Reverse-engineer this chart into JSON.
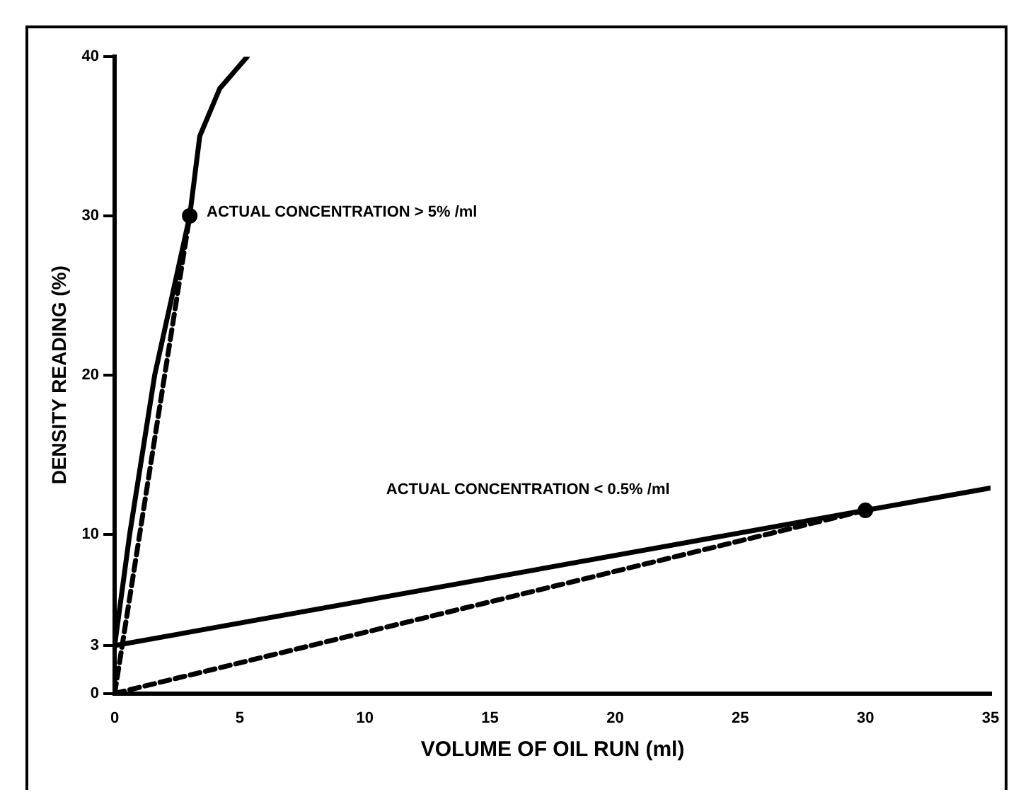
{
  "chart_data": {
    "type": "line",
    "xlabel": "VOLUME OF OIL RUN (ml)",
    "ylabel": "DENSITY READING (%)",
    "xlim": [
      0,
      35
    ],
    "xticks": [
      0,
      5,
      10,
      15,
      20,
      25,
      30,
      35
    ],
    "ylim": [
      0,
      40
    ],
    "yticks": [
      0,
      3,
      10,
      20,
      30,
      40
    ],
    "grid": false,
    "legend": false,
    "marker": "none",
    "series": [
      {
        "type": "line",
        "color": "#000000",
        "line_style": "solid",
        "x": [
          0,
          0.6,
          1.6,
          3,
          3.4,
          4.2,
          5.3
        ],
        "values": [
          3,
          10,
          20,
          30,
          35,
          38,
          40
        ]
      },
      {
        "type": "line",
        "color": "#000000",
        "line_style": "dashed",
        "x": [
          0,
          3
        ],
        "values": [
          0,
          30
        ]
      },
      {
        "type": "line",
        "color": "#000000",
        "line_style": "solid",
        "x": [
          0,
          30,
          35
        ],
        "values": [
          3,
          11.5,
          12.9
        ]
      },
      {
        "type": "line",
        "color": "#000000",
        "line_style": "dashed",
        "x": [
          0,
          30
        ],
        "values": [
          0,
          11.5
        ]
      },
      {
        "type": "scatter",
        "color": "#000000",
        "marker": "circle",
        "x": [
          3,
          30
        ],
        "values": [
          30,
          11.5
        ]
      }
    ],
    "annotations": [
      "ACTUAL CONCENTRATION > 5% /ml",
      "ACTUAL CONCENTRATION < 0.5% /ml"
    ]
  }
}
